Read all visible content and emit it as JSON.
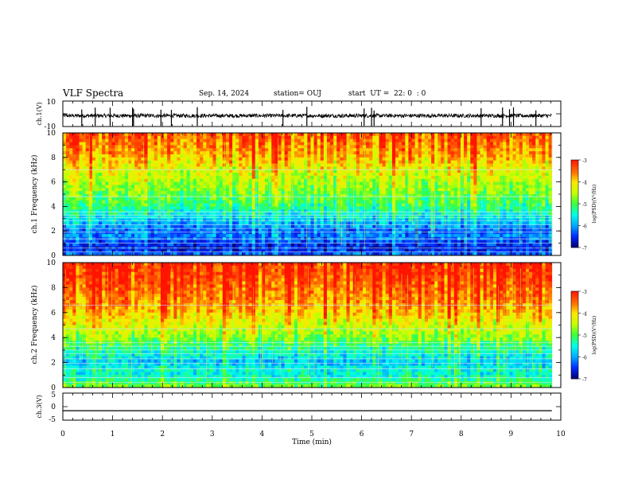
{
  "header": {
    "title": "VLF Spectra",
    "date": "Sep. 14, 2024",
    "station": "station= OUJ",
    "start": "start  UT =  22: 0  : 0"
  },
  "colorbar": {
    "label": "log(PSD)(V²/Hz)",
    "ticks": [
      "-3",
      "-4",
      "-5",
      "-6",
      "-7"
    ]
  },
  "colors": {
    "red": "#ff1a00",
    "yellow": "#ffe600",
    "green": "#33ff33",
    "cyan": "#00ffff",
    "blue": "#0044ff",
    "navy": "#000066"
  },
  "chart_data": [
    {
      "type": "line",
      "name": "ch.1 waveform",
      "ylabel": "ch.1(V)",
      "ylim": [
        -10,
        10
      ],
      "y_ticks": [
        "10",
        "-10"
      ],
      "x_range_min": [
        0,
        9.82
      ],
      "level_v": -1.5,
      "noise_amplitude_v": 1.5,
      "spike_times_min": [
        0.38,
        0.65,
        0.95,
        1.4,
        1.42,
        1.97,
        2.18,
        2.7,
        4.42,
        4.9,
        6.05,
        6.2,
        6.25,
        8.4,
        8.83,
        8.97,
        9.05,
        9.5
      ]
    },
    {
      "type": "heatmap",
      "name": "ch.1 spectrogram",
      "ylabel": "ch.1 Frequency (kHz)",
      "xlim": [
        0,
        10
      ],
      "ylim": [
        0,
        10
      ],
      "y_ticks": [
        "0",
        "2",
        "4",
        "6",
        "8",
        "10"
      ],
      "data_end_min": 9.82,
      "color_scale": [
        -7,
        -3
      ],
      "log_psd_profile": [
        {
          "f_khz": 0,
          "v": -6.2
        },
        {
          "f_khz": 0.5,
          "v": -6.6
        },
        {
          "f_khz": 1,
          "v": -6.5
        },
        {
          "f_khz": 1.5,
          "v": -6.1
        },
        {
          "f_khz": 2,
          "v": -6.3
        },
        {
          "f_khz": 2.5,
          "v": -6.0
        },
        {
          "f_khz": 3,
          "v": -5.7
        },
        {
          "f_khz": 4,
          "v": -5.2
        },
        {
          "f_khz": 5,
          "v": -4.9
        },
        {
          "f_khz": 6,
          "v": -4.6
        },
        {
          "f_khz": 7,
          "v": -4.3
        },
        {
          "f_khz": 8,
          "v": -3.9
        },
        {
          "f_khz": 9,
          "v": -3.6
        },
        {
          "f_khz": 10,
          "v": -3.4
        }
      ],
      "narrowband_lines_khz": [
        0.3,
        0.6,
        1.0,
        1.35,
        1.9,
        2.2,
        2.5,
        2.85,
        3.1,
        3.3,
        3.55,
        4.8,
        7.0
      ]
    },
    {
      "type": "heatmap",
      "name": "ch.2 spectrogram",
      "ylabel": "ch.2 Frequency (kHz)",
      "xlim": [
        0,
        10
      ],
      "ylim": [
        0,
        10
      ],
      "y_ticks": [
        "0",
        "2",
        "4",
        "6",
        "8",
        "10"
      ],
      "data_end_min": 9.82,
      "color_scale": [
        -7,
        -3
      ],
      "log_psd_profile": [
        {
          "f_khz": 0,
          "v": -4.8
        },
        {
          "f_khz": 0.5,
          "v": -5.2
        },
        {
          "f_khz": 1,
          "v": -5.6
        },
        {
          "f_khz": 1.5,
          "v": -5.5
        },
        {
          "f_khz": 2,
          "v": -5.9
        },
        {
          "f_khz": 2.5,
          "v": -5.6
        },
        {
          "f_khz": 3,
          "v": -5.4
        },
        {
          "f_khz": 4,
          "v": -4.8
        },
        {
          "f_khz": 5,
          "v": -4.4
        },
        {
          "f_khz": 6,
          "v": -4.0
        },
        {
          "f_khz": 7,
          "v": -3.7
        },
        {
          "f_khz": 8,
          "v": -3.5
        },
        {
          "f_khz": 9,
          "v": -3.3
        },
        {
          "f_khz": 10,
          "v": -3.2
        }
      ],
      "narrowband_lines_khz": [
        0.4,
        0.8,
        1.5,
        1.95,
        2.3,
        2.7,
        3.0,
        3.3,
        3.6,
        4.7,
        6.6
      ]
    },
    {
      "type": "line",
      "name": "ch.3 waveform",
      "ylabel": "ch.3(V)",
      "xlabel": "Time  (min)",
      "ylim": [
        -5,
        5
      ],
      "y_ticks": [
        "5",
        "0",
        "-5"
      ],
      "x_ticks": [
        "0",
        "1",
        "2",
        "3",
        "4",
        "5",
        "6",
        "7",
        "8",
        "9",
        "10"
      ],
      "xlim": [
        0,
        10
      ],
      "x_range_min": [
        0,
        9.82
      ],
      "level_v": -1.5
    }
  ]
}
